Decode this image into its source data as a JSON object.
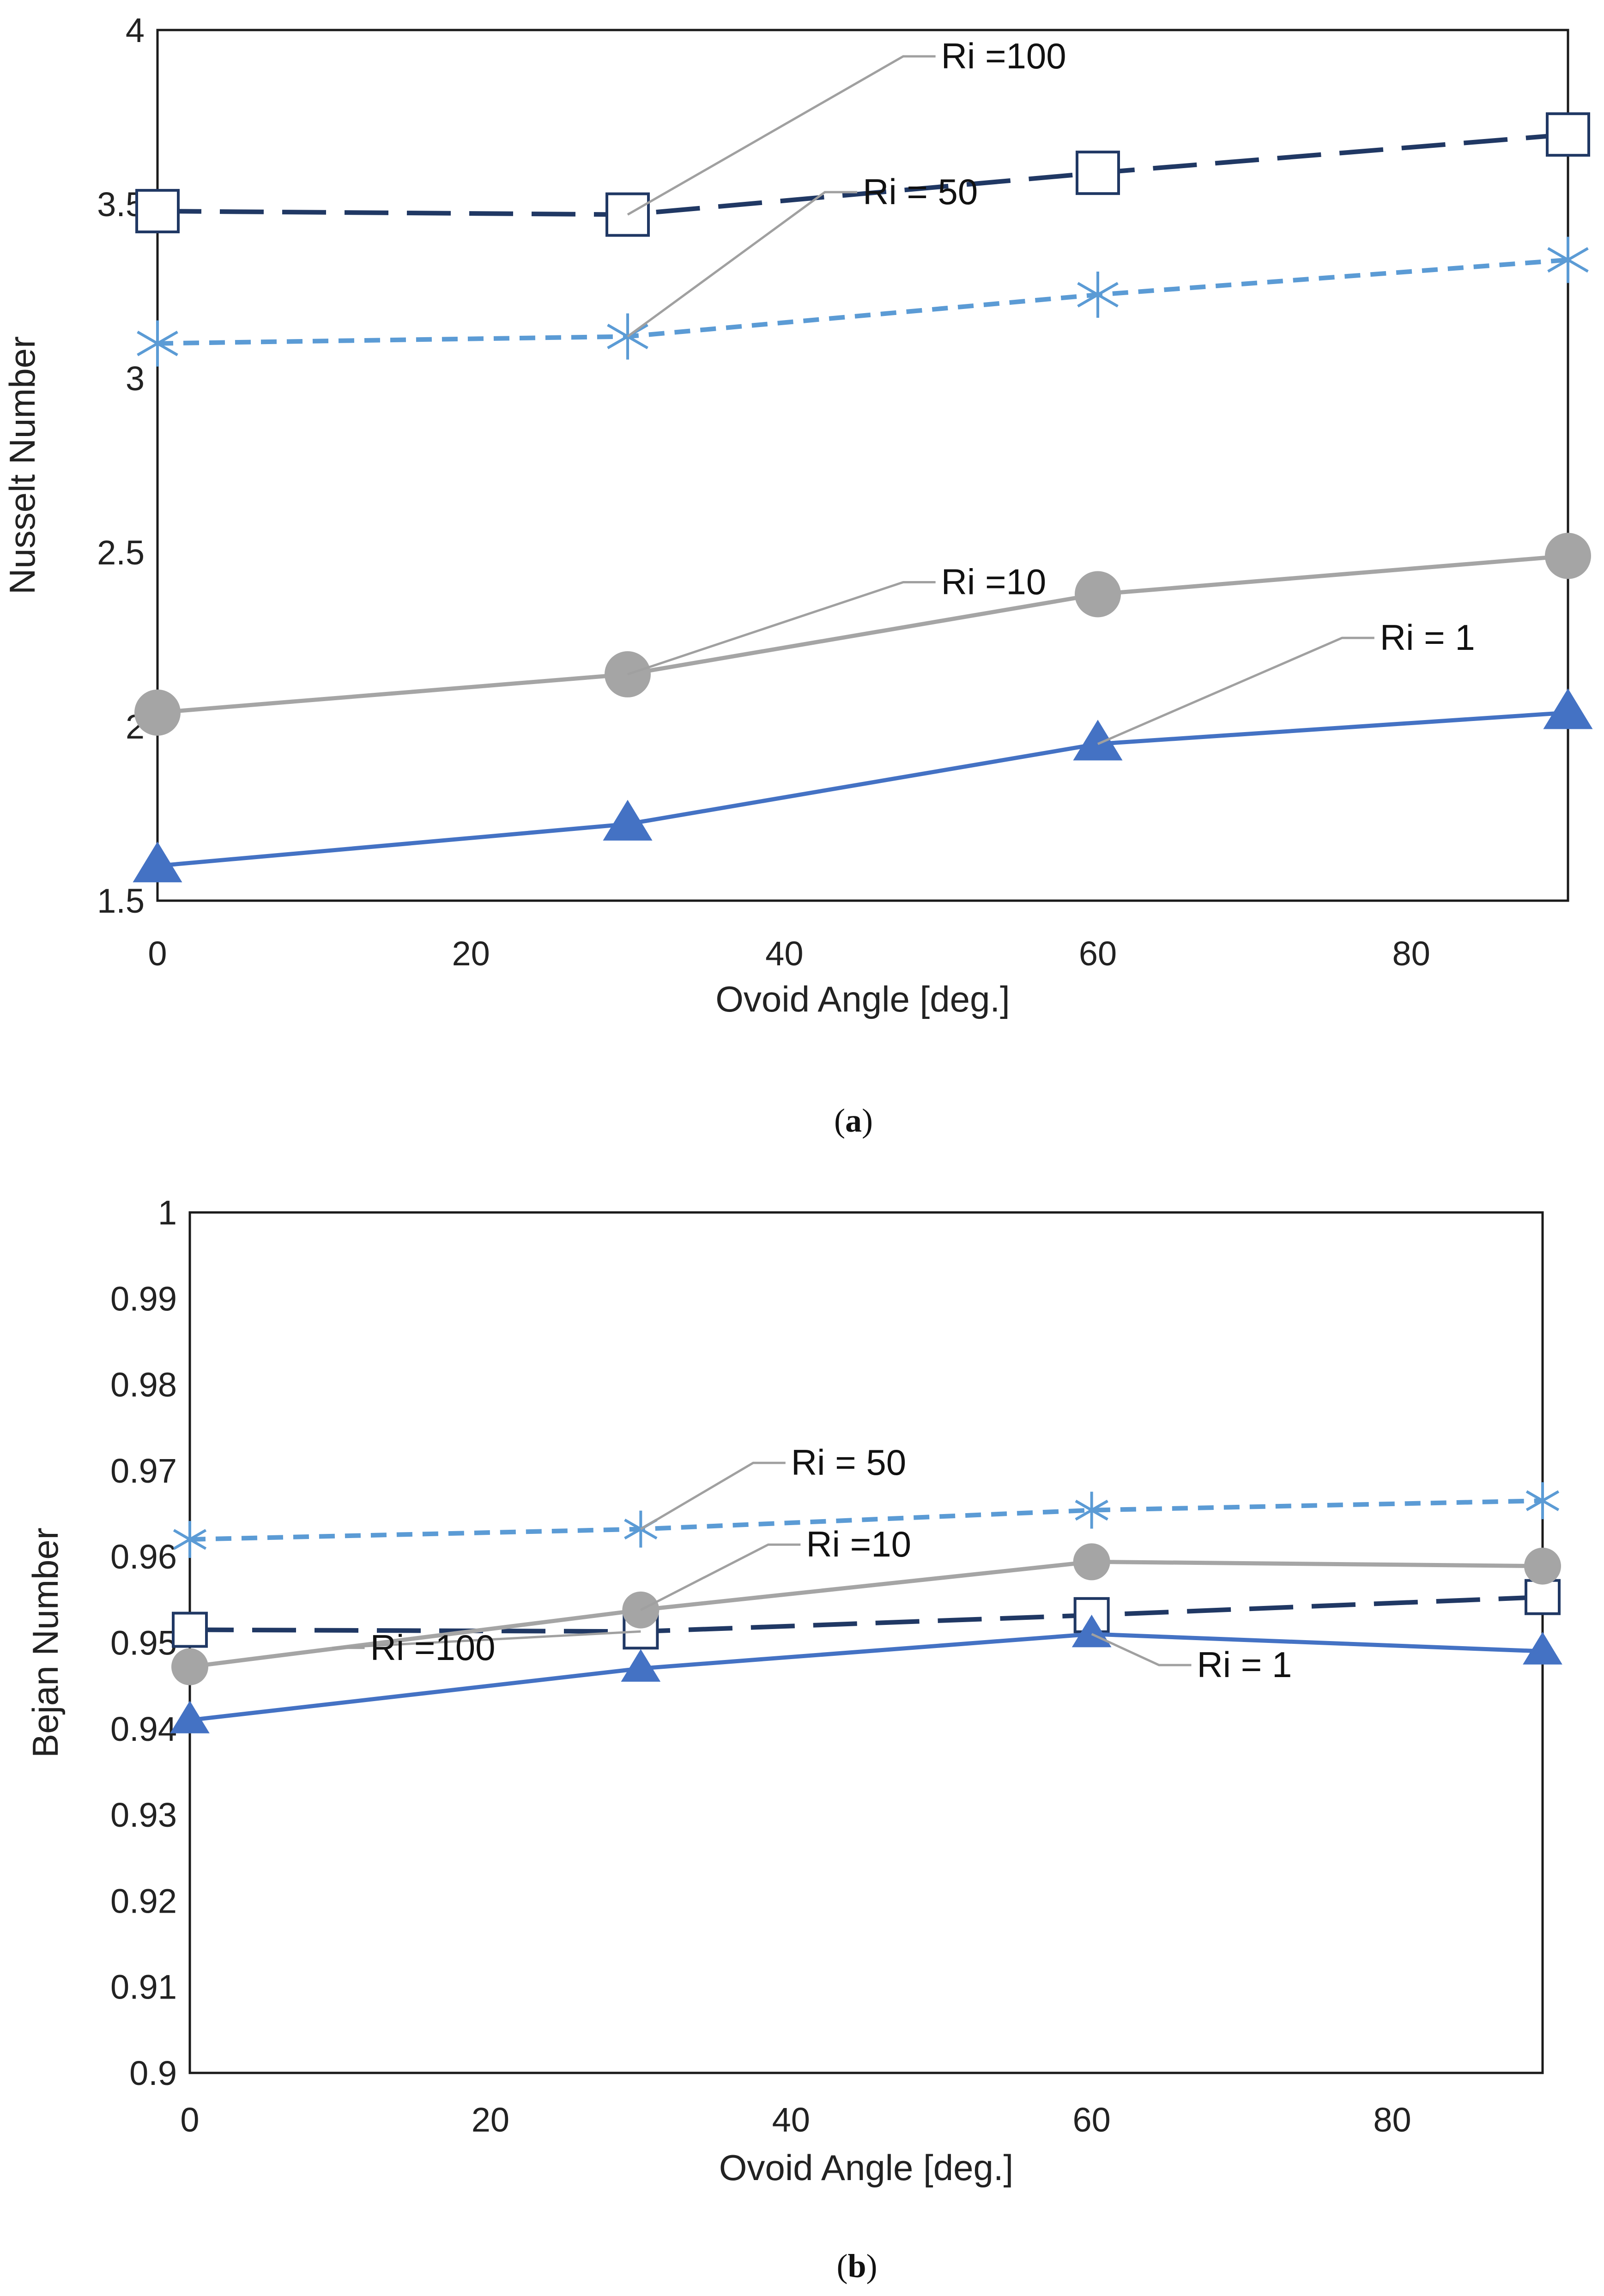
{
  "chart_data": [
    {
      "type": "line",
      "panel": "a",
      "caption": "(a)",
      "caption_letter": "a",
      "xlabel": "Ovoid Angle [deg.]",
      "ylabel": "Nusselt Number",
      "xlim": [
        0,
        90
      ],
      "ylim": [
        1.5,
        4
      ],
      "xticks": [
        0,
        20,
        40,
        60,
        80
      ],
      "xtick_labels": [
        "0",
        "20",
        "40",
        "60",
        "80"
      ],
      "yticks": [
        1.5,
        2,
        2.5,
        3,
        3.5,
        4
      ],
      "ytick_labels": [
        "1.5",
        "2",
        "2.5",
        "3",
        "3.5",
        "4"
      ],
      "grid": false,
      "x": [
        0,
        30,
        60,
        90
      ],
      "series": [
        {
          "name": "Ri =100",
          "values": [
            3.48,
            3.47,
            3.59,
            3.7
          ],
          "color": "#203864",
          "dash": "long-dash",
          "marker": "open-square"
        },
        {
          "name": "Ri = 50",
          "values": [
            3.1,
            3.12,
            3.24,
            3.34
          ],
          "color": "#5B9BD5",
          "dash": "short-dash",
          "marker": "asterisk"
        },
        {
          "name": "Ri =10",
          "values": [
            2.04,
            2.15,
            2.38,
            2.49
          ],
          "color": "#A5A5A5",
          "dash": "solid",
          "marker": "filled-circle"
        },
        {
          "name": "Ri = 1",
          "values": [
            1.6,
            1.72,
            1.95,
            2.04
          ],
          "color": "#4472C4",
          "dash": "solid",
          "marker": "filled-triangle"
        }
      ],
      "annotations": [
        {
          "text": "Ri =100",
          "series": 0,
          "point": 1,
          "text_x": 50,
          "text_y": 3.89
        },
        {
          "text": "Ri = 50",
          "series": 1,
          "point": 1,
          "text_x": 45,
          "text_y": 3.5
        },
        {
          "text": "Ri =10",
          "series": 2,
          "point": 1,
          "text_x": 50,
          "text_y": 2.38
        },
        {
          "text": "Ri = 1",
          "series": 3,
          "point": 2,
          "text_x": 78,
          "text_y": 2.22
        }
      ]
    },
    {
      "type": "line",
      "panel": "b",
      "caption": "(b)",
      "caption_letter": "b",
      "xlabel": "Ovoid Angle [deg.]",
      "ylabel": "Bejan Number",
      "xlim": [
        0,
        90
      ],
      "ylim": [
        0.9,
        1
      ],
      "xticks": [
        0,
        20,
        40,
        60,
        80
      ],
      "xtick_labels": [
        "0",
        "20",
        "40",
        "60",
        "80"
      ],
      "yticks": [
        0.9,
        0.91,
        0.92,
        0.93,
        0.94,
        0.95,
        0.96,
        0.97,
        0.98,
        0.99,
        1
      ],
      "ytick_labels": [
        "0.9",
        "0.91",
        "0.92",
        "0.93",
        "0.94",
        "0.95",
        "0.96",
        "0.97",
        "0.98",
        "0.99",
        "1"
      ],
      "grid": false,
      "x": [
        0,
        30,
        60,
        90
      ],
      "series": [
        {
          "name": "Ri =100",
          "values": [
            0.9515,
            0.9513,
            0.9532,
            0.9553
          ],
          "color": "#203864",
          "dash": "long-dash",
          "marker": "open-square"
        },
        {
          "name": "Ri = 50",
          "values": [
            0.962,
            0.9632,
            0.9654,
            0.9665
          ],
          "color": "#5B9BD5",
          "dash": "short-dash",
          "marker": "asterisk"
        },
        {
          "name": "Ri =10",
          "values": [
            0.9472,
            0.9538,
            0.9594,
            0.9589
          ],
          "color": "#A5A5A5",
          "dash": "solid",
          "marker": "filled-circle"
        },
        {
          "name": "Ri = 1",
          "values": [
            0.941,
            0.947,
            0.951,
            0.949
          ],
          "color": "#4472C4",
          "dash": "solid",
          "marker": "filled-triangle"
        }
      ],
      "annotations": [
        {
          "text": "Ri = 50",
          "series": 1,
          "point": 1,
          "text_x": 40,
          "text_y": 0.9695
        },
        {
          "text": "Ri =10",
          "series": 2,
          "point": 1,
          "text_x": 41,
          "text_y": 0.96
        },
        {
          "text": "Ri =100",
          "series": 0,
          "point": 1,
          "text_x": 12,
          "text_y": 0.948
        },
        {
          "text": "Ri = 1",
          "series": 3,
          "point": 2,
          "text_x": 67,
          "text_y": 0.946
        }
      ]
    }
  ]
}
